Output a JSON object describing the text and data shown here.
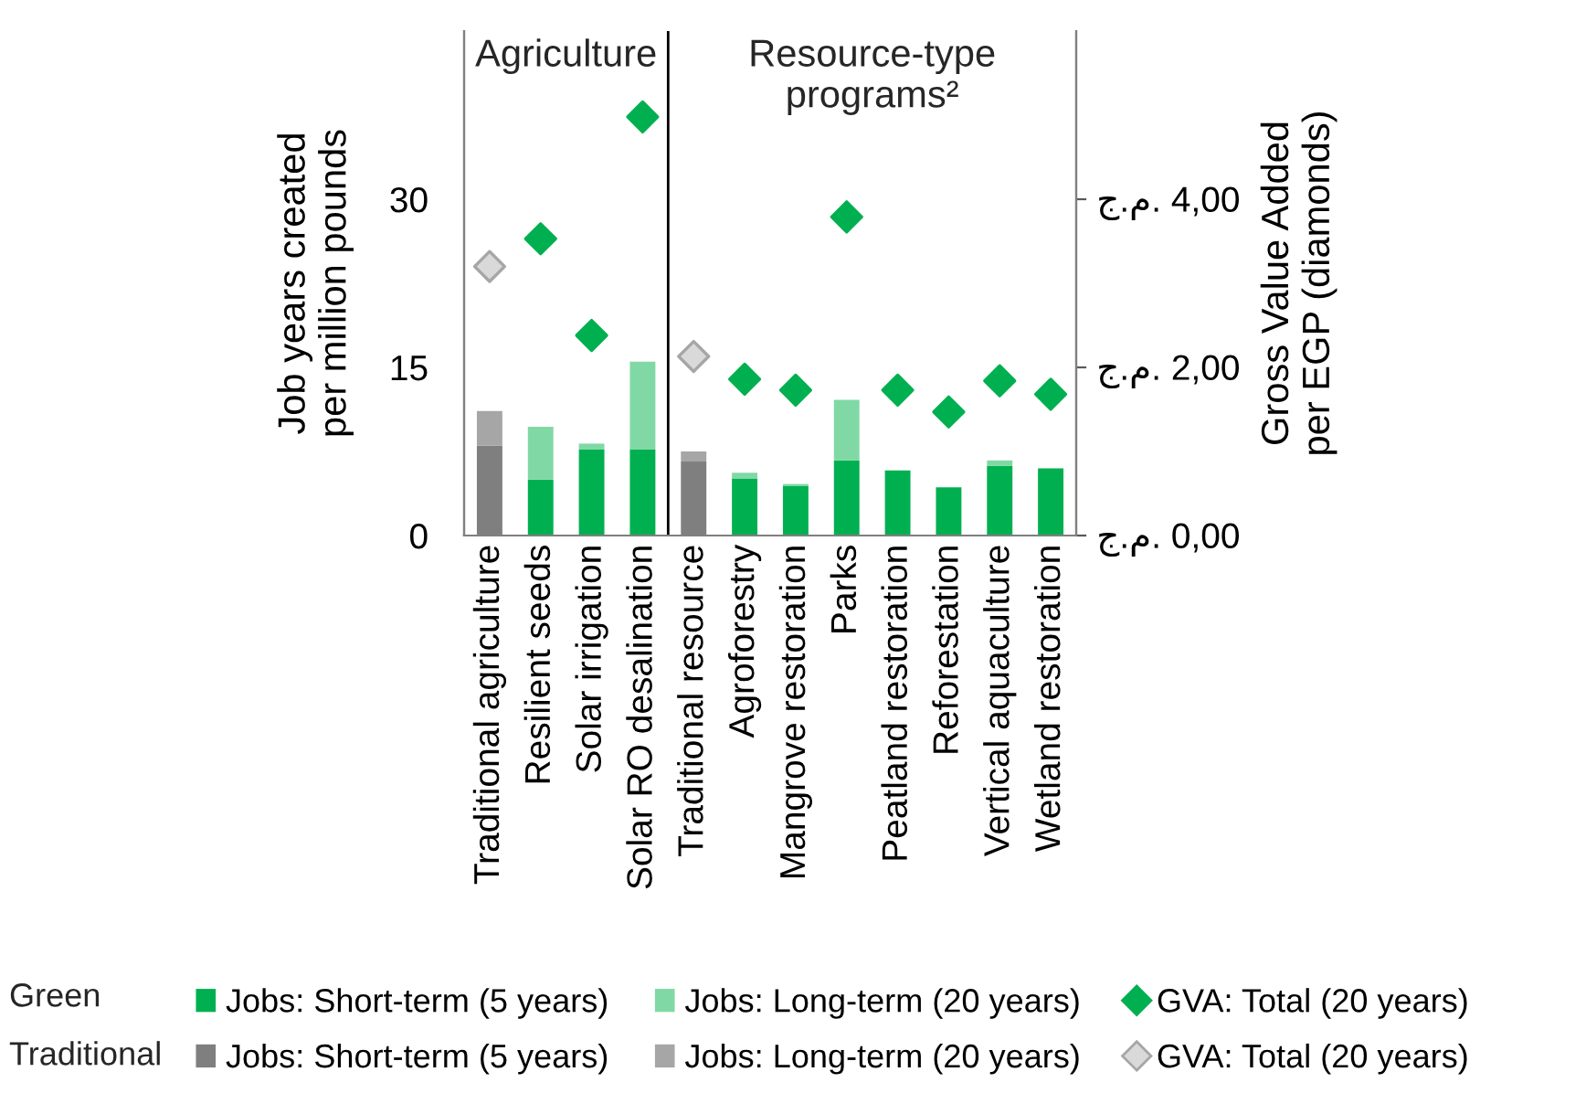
{
  "chart_data": {
    "type": "bar",
    "stacked": true,
    "categories": [
      "Traditional agriculture",
      "Resilient seeds",
      "Solar irrigation",
      "Solar RO desalination",
      "Traditional resource",
      "Agroforestry",
      "Mangrove restoration",
      "Parks",
      "Peatland restoration",
      "Reforestation",
      "Vertical aquaculture",
      "Wetland restoration"
    ],
    "ylabel": "Job years created\nper million pounds",
    "y2label": "Gross Value Added\nper EGP (diamonds)",
    "ylim": [
      0,
      45
    ],
    "yticks": [
      0,
      15,
      30
    ],
    "y2lim": [
      0,
      6
    ],
    "y2ticks": [
      {
        "value": 0,
        "label": "ج.م. 0,00"
      },
      {
        "value": 2,
        "label": "ج.م. 2,00"
      },
      {
        "value": 4,
        "label": "ج.م. 4,00"
      }
    ],
    "series": [
      {
        "name": "Jobs: Short-term (5 years)",
        "color": "#00b050",
        "values": [
          null,
          5.0,
          7.7,
          7.7,
          null,
          5.1,
          4.4,
          6.7,
          5.8,
          4.3,
          6.2,
          6.0
        ]
      },
      {
        "name": "Jobs: Short-term (5 years)",
        "color": "#7f7f7f",
        "values": [
          8.0,
          null,
          null,
          null,
          6.6,
          null,
          null,
          null,
          null,
          null,
          null,
          null
        ]
      },
      {
        "name": "Jobs: Long-term (20 years)",
        "color": "#80d9a5",
        "values": [
          null,
          4.7,
          0.5,
          7.8,
          null,
          0.5,
          0.2,
          5.4,
          null,
          null,
          0.5,
          null
        ]
      },
      {
        "name": "Jobs: Long-term (20 years)",
        "color": "#a6a6a6",
        "values": [
          3.1,
          null,
          null,
          null,
          0.9,
          null,
          null,
          null,
          null,
          null,
          null,
          null
        ]
      },
      {
        "name": "GVA: Total (20 years)",
        "type": "scatter",
        "axis": "y2",
        "marker": "diamond",
        "color": "#00b050",
        "values": [
          null,
          3.53,
          2.38,
          4.98,
          null,
          1.86,
          1.73,
          3.79,
          1.73,
          1.47,
          1.84,
          1.68
        ]
      },
      {
        "name": "GVA: Total (20 years)",
        "type": "scatter",
        "axis": "y2",
        "marker": "diamond",
        "color": "#d9d9d9",
        "values": [
          3.2,
          null,
          null,
          null,
          2.13,
          null,
          null,
          null,
          null,
          null,
          null,
          null
        ]
      }
    ],
    "annotations": [
      "Agriculture",
      "Resource-type\nprograms²",
      "Green",
      "Traditional"
    ],
    "legend": "bottom",
    "grid": false
  }
}
